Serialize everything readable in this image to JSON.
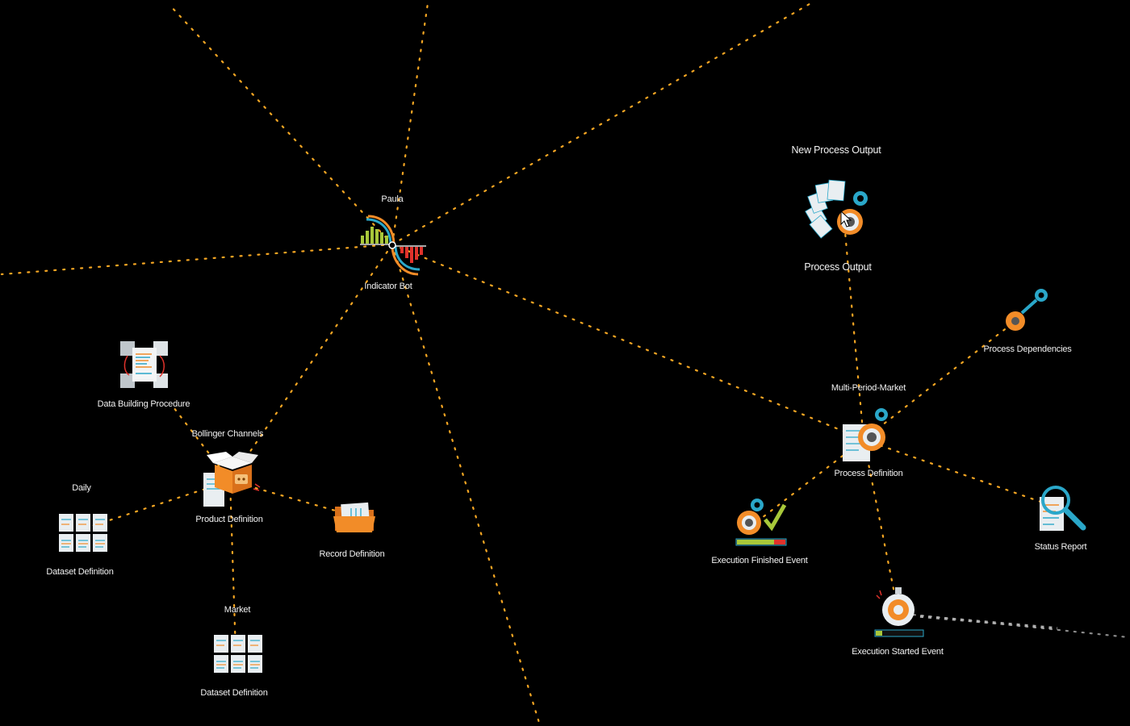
{
  "nodes": {
    "paula": {
      "title": "Paula",
      "type": "Indicator Bot"
    },
    "data_building": {
      "type": "Data Building Procedure"
    },
    "bollinger": {
      "title": "Bollinger Channels",
      "type": "Product Definition"
    },
    "record": {
      "type": "Record Definition"
    },
    "daily": {
      "title": "Daily",
      "type": "Dataset Definition"
    },
    "market": {
      "title": "Market",
      "type": "Dataset Definition"
    },
    "process_output": {
      "title": "New Process Output",
      "type": "Process Output"
    },
    "process_deps": {
      "type": "Process Dependencies"
    },
    "process_def": {
      "title": "Multi-Period-Market",
      "type": "Process Definition"
    },
    "exec_finished": {
      "type": "Execution Finished Event"
    },
    "status_report": {
      "type": "Status Report"
    },
    "exec_started": {
      "type": "Execution Started Event"
    }
  },
  "colors": {
    "background": "#000000",
    "link": "#f5a623",
    "accent_orange": "#f28c28",
    "accent_blue": "#2aa7c9",
    "accent_green": "#a8c83a",
    "accent_red": "#e0322b",
    "paper": "#e9eef1"
  }
}
